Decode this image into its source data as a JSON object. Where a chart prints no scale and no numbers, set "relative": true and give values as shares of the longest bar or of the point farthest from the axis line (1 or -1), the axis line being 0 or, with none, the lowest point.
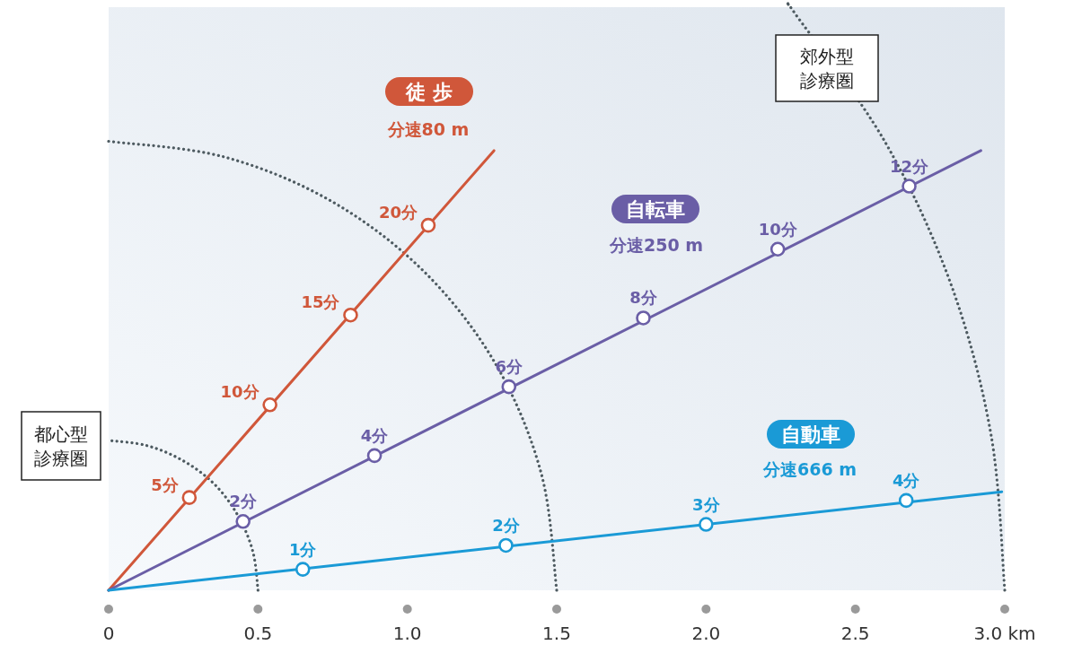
{
  "chart_data": {
    "type": "line",
    "relative": true,
    "xlim": [
      0,
      3
    ],
    "xticks": [
      {
        "value": 0,
        "label": "0"
      },
      {
        "value": 0.5,
        "label": "0.5"
      },
      {
        "value": 1,
        "label": "1.0"
      },
      {
        "value": 1.5,
        "label": "1.5"
      },
      {
        "value": 2,
        "label": "2.0"
      },
      {
        "value": 2.5,
        "label": "2.5"
      },
      {
        "value": 3,
        "label": "3.0 km"
      }
    ],
    "tick_labels": "x",
    "series": [
      {
        "type": "line",
        "line_style": "dotted",
        "marker": "none",
        "color": "#4d5a60",
        "x": [
          0.5,
          0.483,
          0.433,
          0.354,
          0.25,
          0.129,
          0
        ],
        "values": [
          0,
          0.066,
          0.128,
          0.182,
          0.222,
          0.248,
          0.257
        ]
      },
      {
        "type": "line",
        "line_style": "dotted",
        "marker": "none",
        "color": "#4d5a60",
        "x": [
          1.5,
          1.449,
          1.299,
          1.061,
          0.75,
          0.388,
          0
        ],
        "values": [
          0,
          0.199,
          0.385,
          0.544,
          0.666,
          0.743,
          0.77
        ]
      },
      {
        "type": "line",
        "line_style": "dotted",
        "marker": "none",
        "color": "#4d5a60",
        "x": [
          3,
          2.954,
          2.819,
          2.598,
          2.298,
          2.281
        ],
        "values": [
          0,
          0.267,
          0.526,
          0.77,
          0.989,
          1
        ]
      },
      {
        "type": "line",
        "name": "徒 歩",
        "line_style": "solid",
        "marker": "none",
        "color": "#d0573a",
        "x": [
          0,
          1.29
        ],
        "values": [
          0,
          0.754
        ]
      },
      {
        "type": "line",
        "name": "自転車",
        "line_style": "solid",
        "marker": "none",
        "color": "#6a5ea6",
        "x": [
          0,
          2.92
        ],
        "values": [
          0,
          0.754
        ]
      },
      {
        "type": "line",
        "name": "自動車",
        "line_style": "solid",
        "marker": "none",
        "color": "#1a9ad6",
        "x": [
          0,
          2.99
        ],
        "values": [
          0,
          0.169
        ]
      },
      {
        "type": "scatter",
        "marker": "circle",
        "color": "#d0573a",
        "x": [
          0.27,
          0.54,
          0.81,
          1.07
        ],
        "values": [
          0.159,
          0.318,
          0.472,
          0.626
        ]
      },
      {
        "type": "scatter",
        "marker": "circle",
        "color": "#6a5ea6",
        "x": [
          0.45,
          0.89,
          1.34,
          1.79,
          2.24,
          2.68
        ],
        "values": [
          0.118,
          0.231,
          0.349,
          0.467,
          0.585,
          0.693
        ]
      },
      {
        "type": "scatter",
        "marker": "circle",
        "color": "#1a9ad6",
        "x": [
          0.65,
          1.33,
          2.0,
          2.67
        ],
        "values": [
          0.036,
          0.077,
          0.113,
          0.154
        ]
      }
    ],
    "annotations": [
      "分速80 m",
      "分速250 m",
      "分速666 m",
      "都心型診療圏",
      "郊外型診療圏",
      {
        "text": "5分",
        "x": 0.27,
        "y": 0.159
      },
      {
        "text": "10分",
        "x": 0.54,
        "y": 0.318
      },
      {
        "text": "15分",
        "x": 0.81,
        "y": 0.472
      },
      {
        "text": "20分",
        "x": 1.07,
        "y": 0.626
      },
      {
        "text": "2分",
        "x": 0.45,
        "y": 0.118
      },
      {
        "text": "4分",
        "x": 0.89,
        "y": 0.231
      },
      {
        "text": "6分",
        "x": 1.34,
        "y": 0.349
      },
      {
        "text": "8分",
        "x": 1.79,
        "y": 0.467
      },
      {
        "text": "10分",
        "x": 2.24,
        "y": 0.585
      },
      {
        "text": "12分",
        "x": 2.68,
        "y": 0.693
      },
      {
        "text": "1分",
        "x": 0.65,
        "y": 0.036
      },
      {
        "text": "2分",
        "x": 1.33,
        "y": 0.077
      },
      {
        "text": "3分",
        "x": 2.0,
        "y": 0.113
      },
      {
        "text": "4分",
        "x": 2.67,
        "y": 0.154
      }
    ]
  }
}
